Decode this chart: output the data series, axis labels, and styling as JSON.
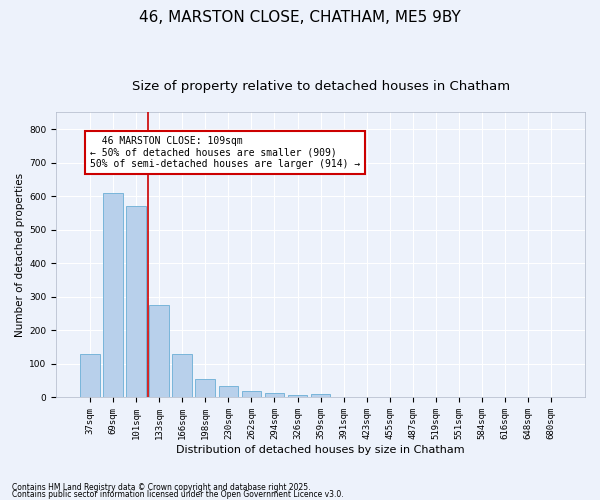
{
  "title1": "46, MARSTON CLOSE, CHATHAM, ME5 9BY",
  "title2": "Size of property relative to detached houses in Chatham",
  "xlabel": "Distribution of detached houses by size in Chatham",
  "ylabel": "Number of detached properties",
  "footnote1": "Contains HM Land Registry data © Crown copyright and database right 2025.",
  "footnote2": "Contains public sector information licensed under the Open Government Licence v3.0.",
  "annotation_line1": "  46 MARSTON CLOSE: 109sqm  ",
  "annotation_line2": "← 50% of detached houses are smaller (909)",
  "annotation_line3": "50% of semi-detached houses are larger (914) →",
  "bar_color": "#b8d0eb",
  "bar_edge_color": "#6aaed6",
  "vline_color": "#cc0000",
  "vline_x_index": 2,
  "categories": [
    "37sqm",
    "69sqm",
    "101sqm",
    "133sqm",
    "166sqm",
    "198sqm",
    "230sqm",
    "262sqm",
    "294sqm",
    "326sqm",
    "359sqm",
    "391sqm",
    "423sqm",
    "455sqm",
    "487sqm",
    "519sqm",
    "551sqm",
    "584sqm",
    "616sqm",
    "648sqm",
    "680sqm"
  ],
  "values": [
    130,
    610,
    570,
    275,
    130,
    55,
    35,
    18,
    13,
    8,
    10,
    2,
    1,
    1,
    0,
    0,
    0,
    0,
    1,
    0,
    0
  ],
  "ylim": [
    0,
    850
  ],
  "yticks": [
    0,
    100,
    200,
    300,
    400,
    500,
    600,
    700,
    800
  ],
  "background_color": "#edf2fb",
  "grid_color": "#ffffff",
  "title1_fontsize": 11,
  "title2_fontsize": 9.5,
  "annotation_box_facecolor": "#ffffff",
  "annotation_box_edgecolor": "#cc0000",
  "annotation_fontsize": 7,
  "xlabel_fontsize": 8,
  "ylabel_fontsize": 7.5,
  "tick_fontsize": 6.5
}
